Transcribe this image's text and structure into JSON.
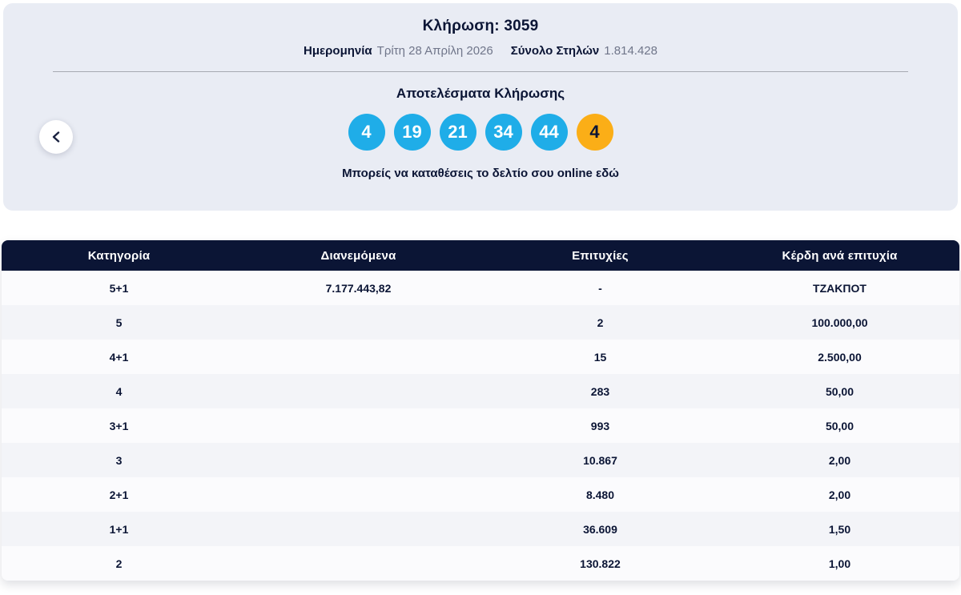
{
  "colors": {
    "navy": "#0b1535",
    "panel_bg": "#e9ecf4",
    "ball_blue": "#1fade8",
    "ball_orange": "#fbae17",
    "muted_text": "#70768a",
    "row_base": "#fbfbfd",
    "row_alt": "#f3f4f8"
  },
  "header": {
    "title": "Κλήρωση: 3059",
    "date_label": "Ημερομηνία",
    "date_value": "Τρίτη 28 Απρίλη 2026",
    "columns_label": "Σύνολο Στηλών",
    "columns_value": "1.814.428",
    "results_title": "Αποτελέσματα Κλήρωσης",
    "numbers": [
      "4",
      "19",
      "21",
      "34",
      "44"
    ],
    "joker": "4",
    "link_text": "Μπορείς να καταθέσεις το δελτίο σου online εδώ",
    "back_icon": "chevron-left"
  },
  "table": {
    "headers": [
      "Κατηγορία",
      "Διανεμόμενα",
      "Επιτυχίες",
      "Κέρδη ανά επιτυχία"
    ],
    "rows": [
      [
        "5+1",
        "7.177.443,82",
        "-",
        "ΤΖΑΚΠΟΤ"
      ],
      [
        "5",
        "",
        "2",
        "100.000,00"
      ],
      [
        "4+1",
        "",
        "15",
        "2.500,00"
      ],
      [
        "4",
        "",
        "283",
        "50,00"
      ],
      [
        "3+1",
        "",
        "993",
        "50,00"
      ],
      [
        "3",
        "",
        "10.867",
        "2,00"
      ],
      [
        "2+1",
        "",
        "8.480",
        "2,00"
      ],
      [
        "1+1",
        "",
        "36.609",
        "1,50"
      ],
      [
        "2",
        "",
        "130.822",
        "1,00"
      ]
    ]
  }
}
